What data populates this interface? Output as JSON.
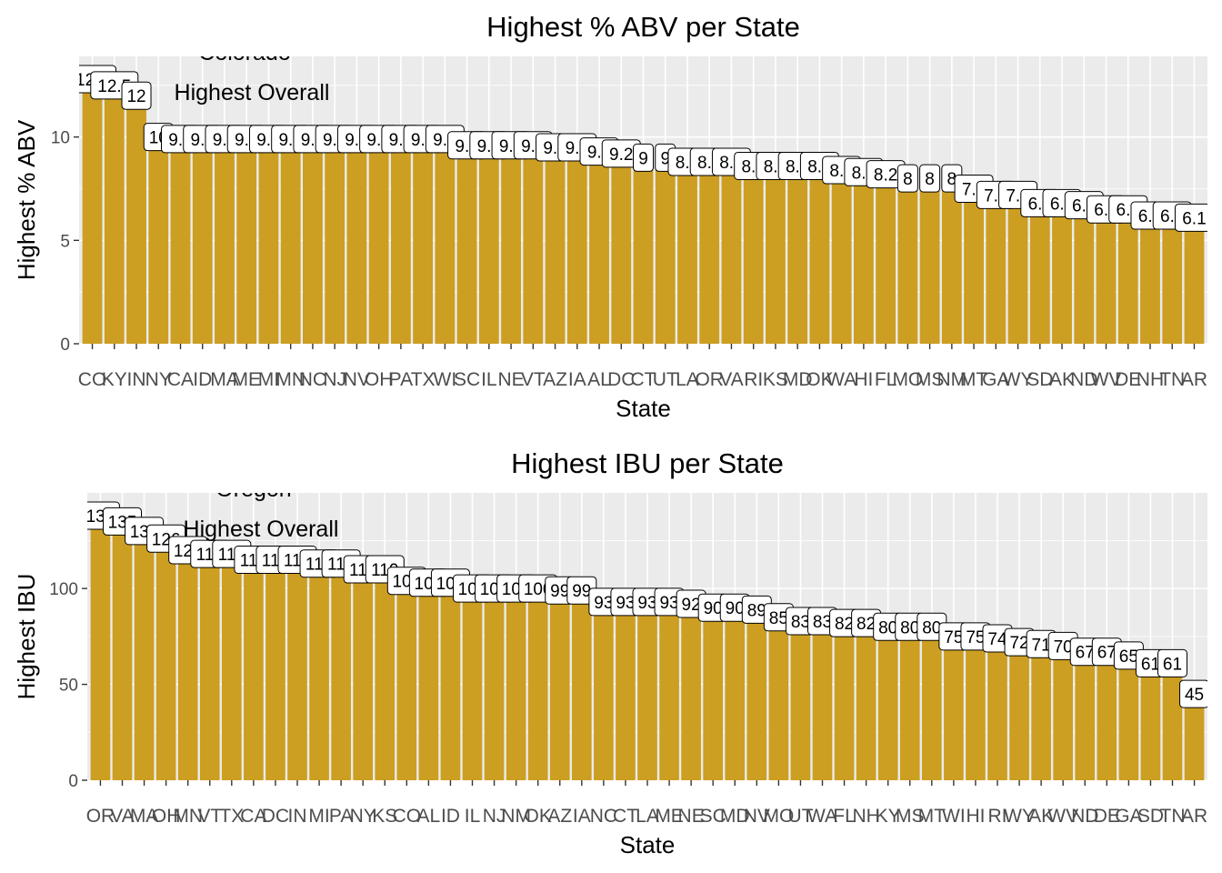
{
  "chart_data": [
    {
      "type": "bar",
      "title": "Highest % ABV per State",
      "xlabel": "State",
      "ylabel": "Highest % ABV",
      "ylim": [
        0,
        12.8
      ],
      "yticks": [
        0,
        5,
        10
      ],
      "grid": true,
      "bar_color": "#CC9E22",
      "panel_color": "#EBEBEB",
      "categories": [
        "CO",
        "KY",
        "IN",
        "NY",
        "CA",
        "ID",
        "MA",
        "ME",
        "MI",
        "MN",
        "NC",
        "NJ",
        "NV",
        "OH",
        "PA",
        "TX",
        "WI",
        "SC",
        "IL",
        "NE",
        "VT",
        "AZ",
        "IA",
        "AL",
        "DC",
        "CT",
        "UT",
        "LA",
        "OR",
        "VA",
        "RI",
        "KS",
        "MD",
        "OK",
        "WA",
        "HI",
        "FL",
        "MO",
        "MS",
        "NM",
        "MT",
        "GA",
        "WY",
        "SD",
        "AK",
        "ND",
        "WV",
        "DE",
        "NH",
        "TN",
        "AR"
      ],
      "values": [
        12.8,
        12.5,
        12.0,
        10.0,
        9.9,
        9.9,
        9.9,
        9.9,
        9.9,
        9.9,
        9.9,
        9.9,
        9.9,
        9.9,
        9.9,
        9.9,
        9.9,
        9.6,
        9.6,
        9.6,
        9.6,
        9.5,
        9.5,
        9.3,
        9.2,
        9.0,
        9.0,
        8.8,
        8.8,
        8.8,
        8.6,
        8.6,
        8.6,
        8.6,
        8.4,
        8.3,
        8.2,
        8.0,
        8.0,
        8.0,
        7.5,
        7.2,
        7.2,
        6.8,
        6.8,
        6.7,
        6.5,
        6.5,
        6.2,
        6.2,
        6.1
      ],
      "point_labels": [
        "12.8",
        "12.5",
        "12",
        "10",
        "9.9",
        "9.9",
        "9.9",
        "9.9",
        "9.9",
        "9.9",
        "9.9",
        "9.9",
        "9.9",
        "9.9",
        "9.9",
        "9.9",
        "9.9",
        "9.6",
        "9.6",
        "9.6",
        "9.6",
        "9.5",
        "9.5",
        "9.3",
        "9.2",
        "9",
        "9",
        "8.8",
        "8.8",
        "8.8",
        "8.6",
        "8.6",
        "8.6",
        "8.6",
        "8.4",
        "8.3",
        "8.2",
        "8",
        "8",
        "8",
        "7.5",
        "7.2",
        "7.2",
        "6.8",
        "6.8",
        "6.7",
        "6.5",
        "6.5",
        "6.2",
        "6.2",
        "6.1"
      ],
      "annotations": [
        "Colorado",
        "Highest Overall"
      ]
    },
    {
      "type": "bar",
      "title": "Highest IBU per State",
      "xlabel": "State",
      "ylabel": "Highest IBU",
      "ylim": [
        0,
        138
      ],
      "yticks": [
        0,
        50,
        100
      ],
      "grid": true,
      "bar_color": "#CC9E22",
      "panel_color": "#EBEBEB",
      "categories": [
        "OR",
        "VA",
        "MA",
        "OH",
        "MN",
        "VT",
        "TX",
        "CA",
        "DC",
        "IN",
        "MI",
        "PA",
        "NY",
        "KS",
        "CO",
        "AL",
        "ID",
        "IL",
        "NJ",
        "NM",
        "OK",
        "AZ",
        "IA",
        "NC",
        "CT",
        "LA",
        "ME",
        "NE",
        "SC",
        "MD",
        "NV",
        "MO",
        "UT",
        "WA",
        "FL",
        "NH",
        "KY",
        "MS",
        "MT",
        "WI",
        "HI",
        "RI",
        "WY",
        "AK",
        "WV",
        "ND",
        "DE",
        "GA",
        "SD",
        "TN",
        "AR"
      ],
      "values": [
        138,
        135,
        130,
        126,
        120,
        118,
        118,
        115,
        115,
        115,
        113,
        113,
        110,
        110,
        104,
        103,
        103,
        100,
        100,
        100,
        100,
        99,
        99,
        93,
        93,
        93,
        93,
        92,
        90,
        90,
        89,
        85,
        83,
        83,
        82,
        82,
        80,
        80,
        80,
        75,
        75,
        74,
        72,
        71,
        70,
        67,
        67,
        65,
        61,
        61,
        45
      ],
      "point_labels": [
        "138",
        "135",
        "130",
        "126",
        "120",
        "118",
        "118",
        "115",
        "115",
        "115",
        "113",
        "113",
        "110",
        "110",
        "104",
        "103",
        "103",
        "100",
        "100",
        "100",
        "100",
        "99",
        "99",
        "93",
        "93",
        "93",
        "93",
        "92",
        "90",
        "90",
        "89",
        "85",
        "83",
        "83",
        "82",
        "82",
        "80",
        "80",
        "80",
        "75",
        "75",
        "74",
        "72",
        "71",
        "70",
        "67",
        "67",
        "65",
        "61",
        "61",
        "45"
      ],
      "annotations": [
        "Oregon",
        "Highest Overall"
      ]
    }
  ]
}
